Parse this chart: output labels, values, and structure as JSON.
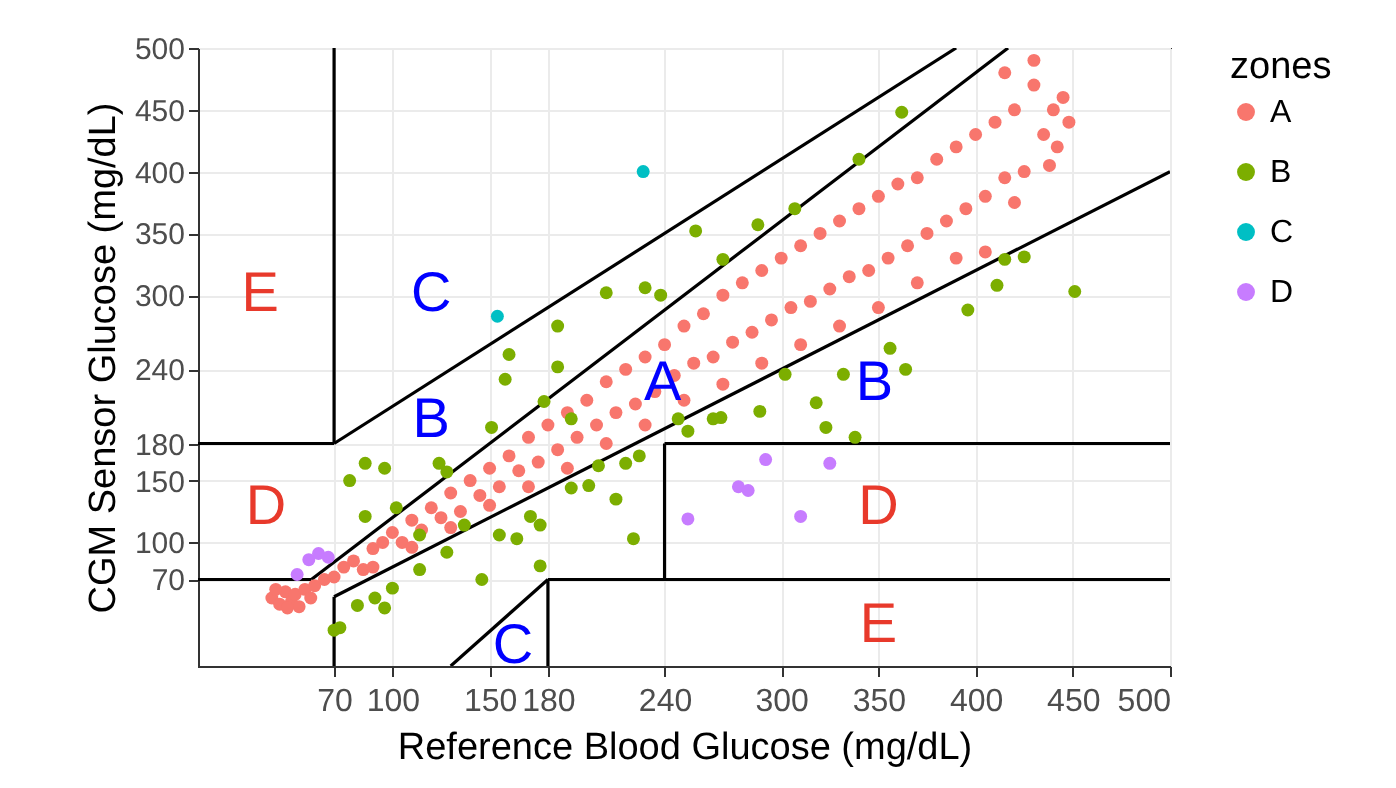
{
  "chart_data": {
    "type": "scatter",
    "xlabel": "Reference Blood Glucose (mg/dL)",
    "ylabel": "CGM Sensor Glucose (mg/dL)",
    "legend_title": "zones",
    "legend": "right",
    "grid": true,
    "marker": "circle",
    "xlim": [
      0,
      500
    ],
    "ylim": [
      0,
      500
    ],
    "xticks": [
      70,
      100,
      150,
      180,
      240,
      300,
      350,
      400,
      450,
      500
    ],
    "yticks": [
      70,
      100,
      150,
      180,
      240,
      300,
      350,
      400,
      450,
      500
    ],
    "series": [
      {
        "name": "A",
        "color": "#f8766d",
        "x": [
          38,
          42,
          45,
          48,
          50,
          52,
          55,
          58,
          40,
          46,
          60,
          65,
          70,
          75,
          80,
          85,
          90,
          95,
          100,
          105,
          110,
          115,
          120,
          125,
          130,
          135,
          140,
          145,
          150,
          155,
          160,
          165,
          170,
          175,
          180,
          185,
          190,
          195,
          200,
          205,
          210,
          215,
          220,
          225,
          230,
          235,
          240,
          245,
          250,
          255,
          260,
          265,
          270,
          275,
          280,
          285,
          290,
          295,
          300,
          305,
          310,
          315,
          320,
          325,
          330,
          335,
          340,
          345,
          350,
          355,
          360,
          365,
          370,
          375,
          380,
          385,
          390,
          395,
          400,
          405,
          410,
          415,
          420,
          425,
          430,
          435,
          440,
          445,
          448,
          442,
          438,
          430,
          415,
          420,
          405,
          390,
          370,
          350,
          330,
          310,
          290,
          270,
          250,
          230,
          210,
          190,
          170,
          150,
          130,
          110,
          90
        ],
        "values": [
          55,
          50,
          60,
          52,
          58,
          48,
          62,
          55,
          62,
          47,
          65,
          70,
          72,
          80,
          85,
          78,
          95,
          100,
          108,
          100,
          118,
          110,
          128,
          120,
          140,
          125,
          150,
          138,
          160,
          145,
          170,
          158,
          185,
          165,
          195,
          175,
          205,
          185,
          215,
          195,
          230,
          205,
          240,
          212,
          250,
          222,
          260,
          235,
          275,
          245,
          285,
          250,
          300,
          262,
          310,
          270,
          320,
          280,
          330,
          290,
          340,
          295,
          350,
          305,
          360,
          315,
          370,
          320,
          380,
          330,
          390,
          340,
          395,
          350,
          410,
          360,
          420,
          370,
          430,
          380,
          440,
          395,
          450,
          400,
          470,
          430,
          450,
          460,
          440,
          420,
          405,
          490,
          480,
          375,
          335,
          330,
          310,
          290,
          275,
          260,
          245,
          228,
          215,
          195,
          180,
          160,
          145,
          130,
          112,
          96,
          80
        ]
      },
      {
        "name": "B",
        "color": "#7cae00",
        "x": [
          362,
          340,
          307,
          256,
          288,
          270,
          451,
          396,
          411,
          415,
          425,
          356,
          364,
          332,
          338,
          323,
          318,
          302,
          289,
          269,
          252,
          227,
          224,
          215,
          206,
          192,
          176,
          176,
          164,
          146,
          128,
          114,
          100,
          91,
          82,
          73,
          70,
          96,
          114,
          102,
          86,
          96,
          78,
          86,
          128,
          124,
          151,
          158,
          185,
          160,
          185,
          210,
          230,
          238,
          192,
          178,
          137,
          155,
          171,
          201,
          220,
          247,
          265
        ],
        "values": [
          448,
          410,
          370,
          352,
          357,
          329,
          303,
          288,
          308,
          329,
          331,
          257,
          240,
          236,
          185,
          193,
          213,
          236,
          206,
          201,
          190,
          170,
          103,
          135,
          162,
          144,
          114,
          81,
          103,
          70,
          92,
          78,
          63,
          55,
          49,
          31,
          29,
          47,
          106,
          128,
          164,
          160,
          150,
          121,
          157,
          164,
          193,
          232,
          242,
          252,
          275,
          302,
          306,
          300,
          200,
          214,
          114,
          106,
          121,
          146,
          164,
          200,
          200
        ]
      },
      {
        "name": "C",
        "color": "#00bfc4",
        "x": [
          229,
          154
        ],
        "values": [
          400,
          283
        ]
      },
      {
        "name": "D",
        "color": "#c77cff",
        "x": [
          292,
          325,
          278,
          283,
          252,
          310,
          51,
          57,
          62,
          67
        ],
        "values": [
          167,
          164,
          145,
          142,
          119,
          121,
          74,
          86,
          91,
          88
        ]
      },
      {
        "type": "line",
        "color": "#000000",
        "marker": "none",
        "x": [
          70,
          70
        ],
        "values": [
          180,
          500
        ]
      },
      {
        "type": "line",
        "color": "#000000",
        "marker": "none",
        "x": [
          70,
          70
        ],
        "values": [
          0,
          56
        ]
      },
      {
        "type": "line",
        "color": "#000000",
        "marker": "none",
        "x": [
          0,
          70
        ],
        "values": [
          180,
          180
        ]
      },
      {
        "type": "line",
        "color": "#000000",
        "marker": "none",
        "x": [
          58.3,
          416.7
        ],
        "values": [
          70,
          500
        ]
      },
      {
        "type": "line",
        "color": "#000000",
        "marker": "none",
        "x": [
          70,
          500
        ],
        "values": [
          56,
          400
        ]
      },
      {
        "type": "line",
        "color": "#000000",
        "marker": "none",
        "x": [
          70,
          390
        ],
        "values": [
          180,
          500
        ]
      },
      {
        "type": "line",
        "color": "#000000",
        "marker": "none",
        "x": [
          240,
          500
        ],
        "values": [
          180,
          180
        ]
      },
      {
        "type": "line",
        "color": "#000000",
        "marker": "none",
        "x": [
          240,
          240
        ],
        "values": [
          70,
          180
        ]
      },
      {
        "type": "line",
        "color": "#000000",
        "marker": "none",
        "x": [
          0,
          58.3
        ],
        "values": [
          70,
          70
        ]
      },
      {
        "type": "line",
        "color": "#000000",
        "marker": "none",
        "x": [
          180,
          500
        ],
        "values": [
          70,
          70
        ]
      },
      {
        "type": "line",
        "color": "#000000",
        "marker": "none",
        "x": [
          180,
          180
        ],
        "values": [
          0,
          70
        ]
      },
      {
        "type": "line",
        "color": "#000000",
        "marker": "none",
        "x": [
          130,
          180
        ],
        "values": [
          0,
          70
        ]
      }
    ],
    "annotations": [
      "E",
      "C",
      "B",
      "A",
      "B",
      "D",
      "D",
      "E",
      "C"
    ]
  }
}
